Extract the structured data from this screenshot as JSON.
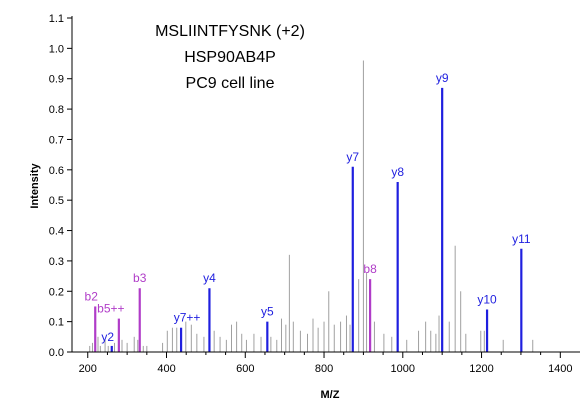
{
  "chart_data": {
    "type": "bar",
    "title_lines": [
      "MSLIINTFYSNK (+2)",
      "HSP90AB4P",
      "PC9 cell line"
    ],
    "xlabel": "M/Z",
    "ylabel": "Intensity",
    "xlim": [
      160,
      1450
    ],
    "ylim": [
      0,
      1.1
    ],
    "xticks": [
      200,
      400,
      600,
      800,
      1000,
      1200,
      1400
    ],
    "yticks": [
      0.0,
      0.1,
      0.2,
      0.3,
      0.4,
      0.5,
      0.6,
      0.7,
      0.8,
      0.9,
      1.0,
      1.1
    ],
    "colors": {
      "y_ion": "#1f1fdf",
      "b_ion": "#b03cc8",
      "unannotated": "#a0a0a0",
      "axis": "#000000"
    },
    "series": [
      {
        "name": "y",
        "color": "#1f1fdf",
        "peaks": [
          {
            "label": "y2",
            "mz": 261,
            "intensity": 0.02
          },
          {
            "label": "y7++",
            "mz": 437,
            "intensity": 0.08
          },
          {
            "label": "y4",
            "mz": 509,
            "intensity": 0.21
          },
          {
            "label": "y5",
            "mz": 656,
            "intensity": 0.1
          },
          {
            "label": "y7",
            "mz": 873,
            "intensity": 0.61
          },
          {
            "label": "y8",
            "mz": 987,
            "intensity": 0.56
          },
          {
            "label": "y9",
            "mz": 1100,
            "intensity": 0.87
          },
          {
            "label": "y10",
            "mz": 1214,
            "intensity": 0.14
          },
          {
            "label": "y11",
            "mz": 1301,
            "intensity": 0.34
          }
        ]
      },
      {
        "name": "b",
        "color": "#b03cc8",
        "peaks": [
          {
            "label": "b2",
            "mz": 219,
            "intensity": 0.15
          },
          {
            "label": "b5++",
            "mz": 279,
            "intensity": 0.11
          },
          {
            "label": "b3",
            "mz": 332,
            "intensity": 0.21
          },
          {
            "label": "b8",
            "mz": 917,
            "intensity": 0.24
          }
        ]
      },
      {
        "name": "",
        "color": "#a0a0a0",
        "peaks": [
          {
            "mz": 205,
            "intensity": 0.02
          },
          {
            "mz": 212,
            "intensity": 0.03
          },
          {
            "mz": 226,
            "intensity": 0.05
          },
          {
            "mz": 232,
            "intensity": 0.02
          },
          {
            "mz": 244,
            "intensity": 0.04
          },
          {
            "mz": 252,
            "intensity": 0.02
          },
          {
            "mz": 268,
            "intensity": 0.03
          },
          {
            "mz": 287,
            "intensity": 0.04
          },
          {
            "mz": 300,
            "intensity": 0.03
          },
          {
            "mz": 318,
            "intensity": 0.05
          },
          {
            "mz": 327,
            "intensity": 0.04
          },
          {
            "mz": 341,
            "intensity": 0.02
          },
          {
            "mz": 350,
            "intensity": 0.02
          },
          {
            "mz": 390,
            "intensity": 0.03
          },
          {
            "mz": 402,
            "intensity": 0.07
          },
          {
            "mz": 415,
            "intensity": 0.08
          },
          {
            "mz": 426,
            "intensity": 0.08
          },
          {
            "mz": 449,
            "intensity": 0.1
          },
          {
            "mz": 463,
            "intensity": 0.09
          },
          {
            "mz": 477,
            "intensity": 0.06
          },
          {
            "mz": 495,
            "intensity": 0.05
          },
          {
            "mz": 521,
            "intensity": 0.07
          },
          {
            "mz": 536,
            "intensity": 0.05
          },
          {
            "mz": 552,
            "intensity": 0.04
          },
          {
            "mz": 565,
            "intensity": 0.09
          },
          {
            "mz": 578,
            "intensity": 0.1
          },
          {
            "mz": 591,
            "intensity": 0.06
          },
          {
            "mz": 603,
            "intensity": 0.04
          },
          {
            "mz": 622,
            "intensity": 0.06
          },
          {
            "mz": 640,
            "intensity": 0.05
          },
          {
            "mz": 665,
            "intensity": 0.05
          },
          {
            "mz": 680,
            "intensity": 0.04
          },
          {
            "mz": 692,
            "intensity": 0.11
          },
          {
            "mz": 703,
            "intensity": 0.09
          },
          {
            "mz": 712,
            "intensity": 0.32
          },
          {
            "mz": 722,
            "intensity": 0.1
          },
          {
            "mz": 740,
            "intensity": 0.07
          },
          {
            "mz": 758,
            "intensity": 0.06
          },
          {
            "mz": 772,
            "intensity": 0.11
          },
          {
            "mz": 785,
            "intensity": 0.08
          },
          {
            "mz": 800,
            "intensity": 0.1
          },
          {
            "mz": 812,
            "intensity": 0.2
          },
          {
            "mz": 826,
            "intensity": 0.09
          },
          {
            "mz": 842,
            "intensity": 0.1
          },
          {
            "mz": 857,
            "intensity": 0.12
          },
          {
            "mz": 866,
            "intensity": 0.09
          },
          {
            "mz": 888,
            "intensity": 0.24
          },
          {
            "mz": 900,
            "intensity": 0.96
          },
          {
            "mz": 908,
            "intensity": 0.26
          },
          {
            "mz": 928,
            "intensity": 0.1
          },
          {
            "mz": 952,
            "intensity": 0.06
          },
          {
            "mz": 972,
            "intensity": 0.05
          },
          {
            "mz": 1010,
            "intensity": 0.04
          },
          {
            "mz": 1040,
            "intensity": 0.07
          },
          {
            "mz": 1058,
            "intensity": 0.1
          },
          {
            "mz": 1071,
            "intensity": 0.07
          },
          {
            "mz": 1084,
            "intensity": 0.06
          },
          {
            "mz": 1092,
            "intensity": 0.12
          },
          {
            "mz": 1118,
            "intensity": 0.1
          },
          {
            "mz": 1133,
            "intensity": 0.35
          },
          {
            "mz": 1147,
            "intensity": 0.2
          },
          {
            "mz": 1160,
            "intensity": 0.06
          },
          {
            "mz": 1198,
            "intensity": 0.07
          },
          {
            "mz": 1207,
            "intensity": 0.07
          },
          {
            "mz": 1255,
            "intensity": 0.04
          },
          {
            "mz": 1330,
            "intensity": 0.04
          }
        ]
      }
    ]
  }
}
